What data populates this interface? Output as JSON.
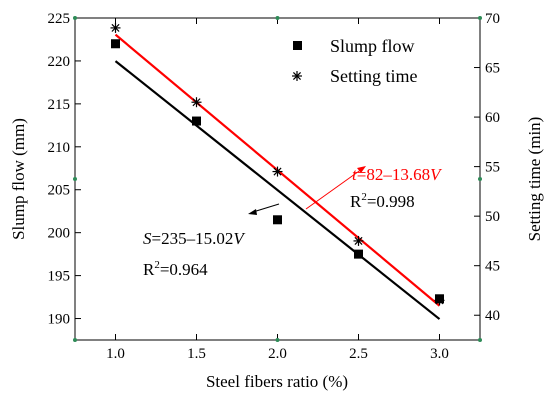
{
  "chart_data": {
    "type": "scatter",
    "xlabel": "Steel fibers ratio (%)",
    "ylabel": "Slump flow (mm)",
    "y2label": "Setting time (min)",
    "xlim": [
      0.75,
      3.25
    ],
    "ylim": [
      187.5,
      225
    ],
    "y2lim": [
      37.5,
      70
    ],
    "x_ticks": [
      "1.0",
      "1.5",
      "2.0",
      "2.5",
      "3.0"
    ],
    "y_ticks": [
      "190",
      "195",
      "200",
      "205",
      "210",
      "215",
      "220",
      "225"
    ],
    "y2_ticks": [
      "40",
      "45",
      "50",
      "55",
      "60",
      "65",
      "70"
    ],
    "series": [
      {
        "name": "Slump flow",
        "axis": "left",
        "marker": "square",
        "color": "#000000",
        "x": [
          1.0,
          1.5,
          2.0,
          2.5,
          3.0
        ],
        "y": [
          222,
          213,
          201.5,
          197.5,
          192.3
        ],
        "fit": {
          "intercept": 235,
          "slope": -15.02,
          "color": "#000000"
        }
      },
      {
        "name": "Setting time",
        "axis": "right",
        "marker": "asterisk",
        "color": "#000000",
        "x": [
          1.0,
          1.5,
          2.0,
          2.5,
          3.0
        ],
        "y": [
          69,
          61.5,
          54.5,
          47.5,
          41.5
        ],
        "fit": {
          "intercept": 82,
          "slope": -13.68,
          "color": "#ff0000"
        }
      }
    ],
    "annotations": [
      {
        "var": "t",
        "rest": "=82–13.68",
        "v": "V",
        "r2_prefix": "R",
        "r2_sup": "2",
        "r2_value": "=0.998",
        "color": "#ff0000"
      },
      {
        "var": "S",
        "rest": "=235–15.02",
        "v": "V",
        "r2_prefix": "R",
        "r2_sup": "2",
        "r2_value": "=0.964",
        "color": "#000000"
      }
    ],
    "legend_position": "top-right"
  }
}
